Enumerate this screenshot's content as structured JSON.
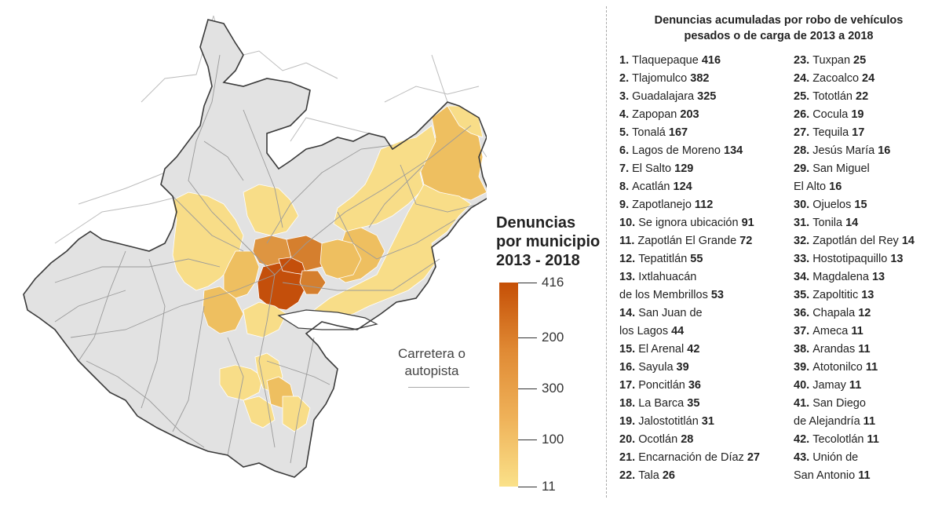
{
  "map": {
    "legend": {
      "title_lines": [
        "Denuncias",
        "por municipio",
        "2013 - 2018"
      ],
      "ticks": [
        {
          "label": "416",
          "pos": 0.0
        },
        {
          "label": "200",
          "pos": 0.27
        },
        {
          "label": "300",
          "pos": 0.52
        },
        {
          "label": "100",
          "pos": 0.77
        },
        {
          "label": "11",
          "pos": 1.0
        }
      ],
      "gradient": [
        "#c54f06",
        "#e08a34",
        "#efb259",
        "#fae189"
      ]
    },
    "road_legend_lines": [
      "Carretera o",
      "autopista"
    ],
    "colors": {
      "state_fill": "#e2e2e2",
      "state_border": "#3a3a3a",
      "road": "#9a9a9a",
      "outer_road": "#bcbcbc",
      "highlight_light": "#f8dd88",
      "highlight_mid": "#eebf60",
      "highlight_dark": "#de9541",
      "highlight_darker": "#d57f2e",
      "highlight_max": "#c44f0b"
    }
  },
  "list": {
    "title_lines": [
      "Denuncias acumuladas por robo de vehículos",
      "pesados o de carga de 2013 a 2018"
    ],
    "column1": [
      {
        "num": "1.",
        "name": "Tlaquepaque",
        "value": "416"
      },
      {
        "num": "2.",
        "name": "Tlajomulco",
        "value": "382"
      },
      {
        "num": "3.",
        "name": "Guadalajara",
        "value": "325"
      },
      {
        "num": "4.",
        "name": "Zapopan",
        "value": "203"
      },
      {
        "num": "5.",
        "name": "Tonalá",
        "value": "167"
      },
      {
        "num": "6.",
        "name": "Lagos de Moreno",
        "value": "134"
      },
      {
        "num": "7.",
        "name": "El Salto",
        "value": "129"
      },
      {
        "num": "8.",
        "name": "Acatlán",
        "value": "124"
      },
      {
        "num": "9.",
        "name": "Zapotlanejo",
        "value": "112"
      },
      {
        "num": "10.",
        "name": "Se ignora ubicación",
        "value": "91"
      },
      {
        "num": "11.",
        "name": "Zapotlán El Grande",
        "value": "72"
      },
      {
        "num": "12.",
        "name": "Tepatitlán",
        "value": "55"
      },
      {
        "num": "13.",
        "name": "Ixtlahuacán",
        "value": ""
      },
      {
        "num": "",
        "name": "de los Membrillos",
        "value": "53"
      },
      {
        "num": "14.",
        "name": "San Juan de",
        "value": ""
      },
      {
        "num": "",
        "name": "los Lagos",
        "value": "44"
      },
      {
        "num": "15.",
        "name": "El Arenal",
        "value": "42"
      },
      {
        "num": "16.",
        "name": "Sayula",
        "value": "39"
      },
      {
        "num": "17.",
        "name": "Poncitlán",
        "value": "36"
      },
      {
        "num": "18.",
        "name": "La Barca",
        "value": "35"
      },
      {
        "num": "19.",
        "name": "Jalostotitlán",
        "value": "31"
      },
      {
        "num": "20.",
        "name": "Ocotlán",
        "value": "28"
      },
      {
        "num": "21.",
        "name": "Encarnación de Díaz",
        "value": "27"
      },
      {
        "num": "22.",
        "name": "Tala",
        "value": "26"
      }
    ],
    "column2": [
      {
        "num": "23.",
        "name": "Tuxpan",
        "value": "25"
      },
      {
        "num": "24.",
        "name": "Zacoalco",
        "value": "24"
      },
      {
        "num": "25.",
        "name": "Tototlán",
        "value": "22"
      },
      {
        "num": "26.",
        "name": "Cocula",
        "value": "19"
      },
      {
        "num": "27.",
        "name": "Tequila",
        "value": "17"
      },
      {
        "num": "28.",
        "name": "Jesús María",
        "value": "16"
      },
      {
        "num": "29.",
        "name": "San Miguel",
        "value": ""
      },
      {
        "num": "",
        "name": "El Alto",
        "value": "16"
      },
      {
        "num": "30.",
        "name": "Ojuelos",
        "value": "15"
      },
      {
        "num": "31.",
        "name": "Tonila",
        "value": "14"
      },
      {
        "num": "32.",
        "name": "Zapotlán del Rey",
        "value": "14"
      },
      {
        "num": "33.",
        "name": "Hostotipaquillo",
        "value": "13"
      },
      {
        "num": "34.",
        "name": "Magdalena",
        "value": "13"
      },
      {
        "num": "35.",
        "name": "Zapoltitic",
        "value": "13"
      },
      {
        "num": "36.",
        "name": "Chapala",
        "value": "12"
      },
      {
        "num": "37.",
        "name": "Ameca",
        "value": "11"
      },
      {
        "num": "38.",
        "name": "Arandas",
        "value": "11"
      },
      {
        "num": "39.",
        "name": "Atotonilco",
        "value": "11"
      },
      {
        "num": "40.",
        "name": "Jamay",
        "value": "11"
      },
      {
        "num": "41.",
        "name": "San Diego",
        "value": ""
      },
      {
        "num": "",
        "name": "de Alejandría",
        "value": "11"
      },
      {
        "num": "42.",
        "name": "Tecolotlán",
        "value": "11"
      },
      {
        "num": "43.",
        "name": "Unión de",
        "value": ""
      },
      {
        "num": "",
        "name": "San Antonio",
        "value": "11"
      }
    ]
  }
}
